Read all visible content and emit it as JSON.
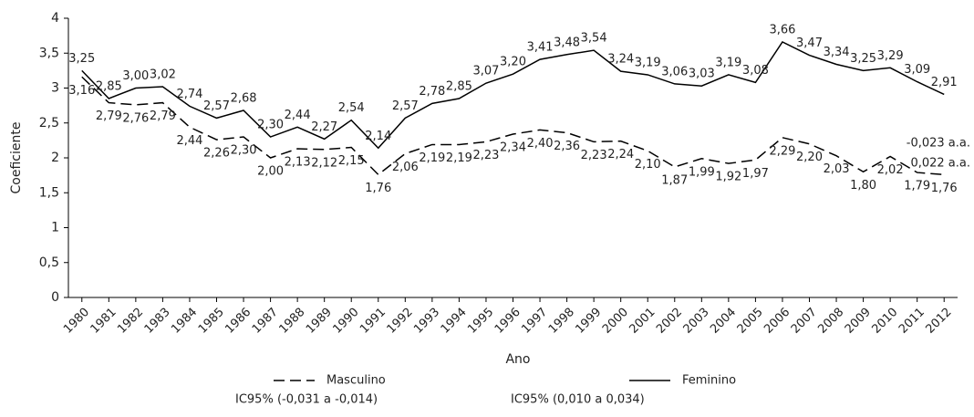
{
  "chart_data": {
    "type": "line",
    "x_label": "Ano",
    "y_label": "Coeficiente",
    "categories": [
      "1980",
      "1981",
      "1982",
      "1983",
      "1984",
      "1985",
      "1986",
      "1987",
      "1988",
      "1989",
      "1990",
      "1991",
      "1992",
      "1993",
      "1994",
      "1995",
      "1996",
      "1997",
      "1998",
      "1999",
      "2000",
      "2001",
      "2002",
      "2003",
      "2004",
      "2005",
      "2006",
      "2007",
      "2008",
      "2009",
      "2010",
      "2011",
      "2012"
    ],
    "ylim": [
      0,
      4
    ],
    "yticks": [
      0,
      {
        "value": 0.5,
        "label": "0,5"
      },
      1,
      {
        "value": 1.5,
        "label": "1,5"
      },
      2,
      {
        "value": 2.5,
        "label": "2,5"
      },
      3,
      {
        "value": 3.5,
        "label": "3,5"
      },
      4
    ],
    "series": [
      {
        "name": "Masculino",
        "color": "#000000",
        "dash": true,
        "ci": "IC95% (-0,031 a -0,014)",
        "trend": "-0,023 a.a.",
        "values": [
          3.16,
          2.79,
          2.76,
          2.79,
          2.44,
          2.26,
          2.3,
          2.0,
          2.13,
          2.12,
          2.15,
          1.76,
          2.06,
          2.19,
          2.19,
          2.23,
          2.34,
          2.4,
          2.36,
          2.23,
          2.24,
          2.1,
          1.87,
          1.99,
          1.92,
          1.97,
          2.29,
          2.2,
          2.03,
          1.8,
          2.02,
          1.79,
          1.76
        ],
        "value_labels": [
          "3,16",
          "2,79",
          "2,76",
          "2,79",
          "2,44",
          "2,26",
          "2,30",
          "2,00",
          "2,13",
          "2,12",
          "2,15",
          "1,76",
          "2,06",
          "2,19",
          "2,19",
          "2,23",
          "2,34",
          "2,40",
          "2,36",
          "2,23",
          "2,24",
          "2,10",
          "1,87",
          "1,99",
          "1,92",
          "1,97",
          "2,29",
          "2,20",
          "2,03",
          "1,80",
          "2,02",
          "1,79",
          "1,76"
        ]
      },
      {
        "name": "Feminino",
        "color": "#000000",
        "dash": false,
        "ci": "IC95% (0,010 a 0,034)",
        "trend": "0,022 a.a.",
        "values": [
          3.25,
          2.85,
          3.0,
          3.02,
          2.74,
          2.57,
          2.68,
          2.3,
          2.44,
          2.27,
          2.54,
          2.14,
          2.57,
          2.78,
          2.85,
          3.07,
          3.2,
          3.41,
          3.48,
          3.54,
          3.24,
          3.19,
          3.06,
          3.03,
          3.19,
          3.08,
          3.66,
          3.47,
          3.34,
          3.25,
          3.29,
          3.09,
          2.91
        ],
        "value_labels": [
          "3,25",
          "2,85",
          "3,00",
          "3,02",
          "2,74",
          "2,57",
          "2,68",
          "2,30",
          "2,44",
          "2,27",
          "2,54",
          "2,14",
          "2,57",
          "2,78",
          "2,85",
          "3,07",
          "3,20",
          "3,41",
          "3,48",
          "3,54",
          "3,24",
          "3,19",
          "3,06",
          "3,03",
          "3,19",
          "3,08",
          "3,66",
          "3,47",
          "3,34",
          "3,25",
          "3,29",
          "3,09",
          "2,91"
        ]
      }
    ]
  }
}
